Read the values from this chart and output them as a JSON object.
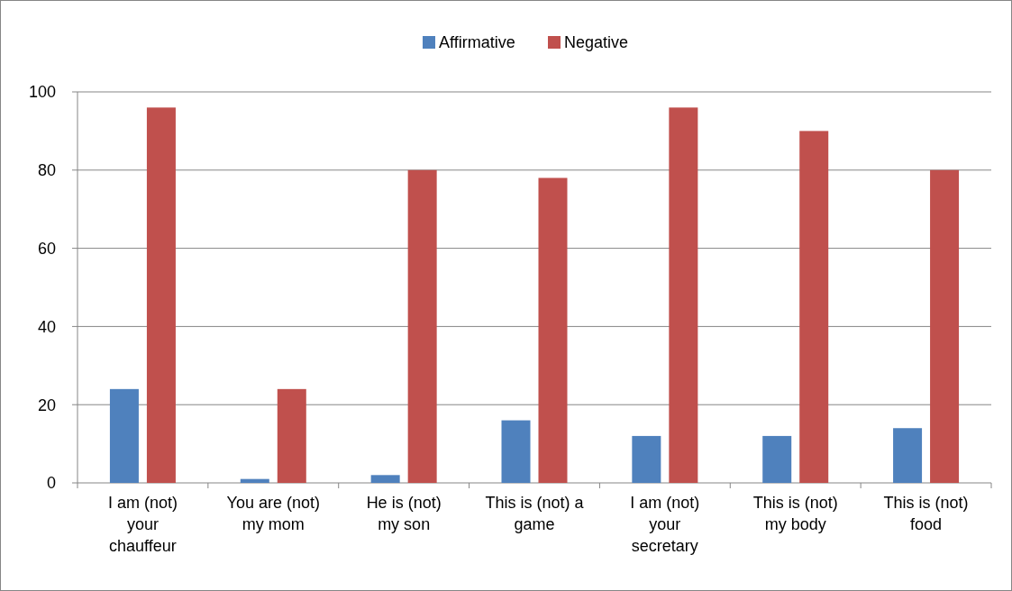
{
  "chart_data": {
    "type": "bar",
    "categories": [
      "I am (not)\nyour\nchauffeur",
      "You are (not)\nmy mom",
      "He is (not)\nmy son",
      "This is (not) a\ngame",
      "I am (not)\nyour\nsecretary",
      "This is (not)\nmy body",
      "This is (not)\nfood"
    ],
    "series": [
      {
        "name": "Affirmative",
        "color": "#4f81bd",
        "values": [
          24,
          1,
          2,
          16,
          12,
          12,
          14
        ]
      },
      {
        "name": "Negative",
        "color": "#c0504d",
        "values": [
          96,
          24,
          80,
          78,
          96,
          90,
          80
        ]
      }
    ],
    "ylim": [
      0,
      100
    ],
    "yticks": [
      0,
      20,
      40,
      60,
      80,
      100
    ],
    "grid": "y",
    "legend": "top"
  }
}
